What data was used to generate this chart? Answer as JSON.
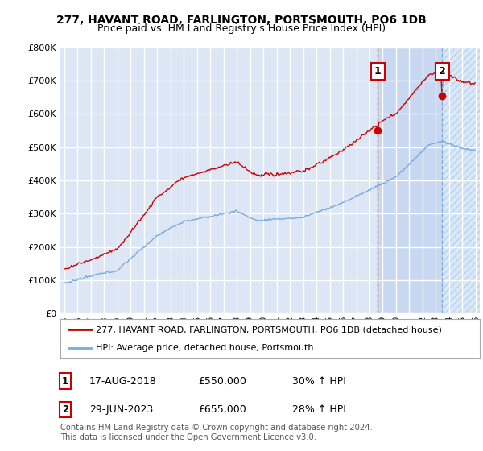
{
  "title": "277, HAVANT ROAD, FARLINGTON, PORTSMOUTH, PO6 1DB",
  "subtitle": "Price paid vs. HM Land Registry's House Price Index (HPI)",
  "ylabel_ticks": [
    "£0",
    "£100K",
    "£200K",
    "£300K",
    "£400K",
    "£500K",
    "£600K",
    "£700K",
    "£800K"
  ],
  "ytick_values": [
    0,
    100000,
    200000,
    300000,
    400000,
    500000,
    600000,
    700000,
    800000
  ],
  "ylim": [
    0,
    800000
  ],
  "xlim_start": 1994.7,
  "xlim_end": 2026.3,
  "background_color": "#dce6f4",
  "shade_between_color": "#c8d8f0",
  "shade_after_color": "#d5e2f5",
  "grid_color": "#ffffff",
  "red_line_color": "#cc0000",
  "blue_line_color": "#7aabdc",
  "vline1_color": "#cc0000",
  "vline2_color": "#7aabdc",
  "sale1": {
    "date": "17-AUG-2018",
    "price": 550000,
    "label": "1",
    "year": 2018.62
  },
  "sale2": {
    "date": "29-JUN-2023",
    "price": 655000,
    "label": "2",
    "year": 2023.49
  },
  "legend_text1": "277, HAVANT ROAD, FARLINGTON, PORTSMOUTH, PO6 1DB (detached house)",
  "legend_text2": "HPI: Average price, detached house, Portsmouth",
  "table_row1": [
    "1",
    "17-AUG-2018",
    "£550,000",
    "30% ↑ HPI"
  ],
  "table_row2": [
    "2",
    "29-JUN-2023",
    "£655,000",
    "28% ↑ HPI"
  ],
  "footnote": "Contains HM Land Registry data © Crown copyright and database right 2024.\nThis data is licensed under the Open Government Licence v3.0.",
  "title_fontsize": 10,
  "subtitle_fontsize": 9,
  "tick_fontsize": 8,
  "legend_fontsize": 8,
  "table_fontsize": 9
}
